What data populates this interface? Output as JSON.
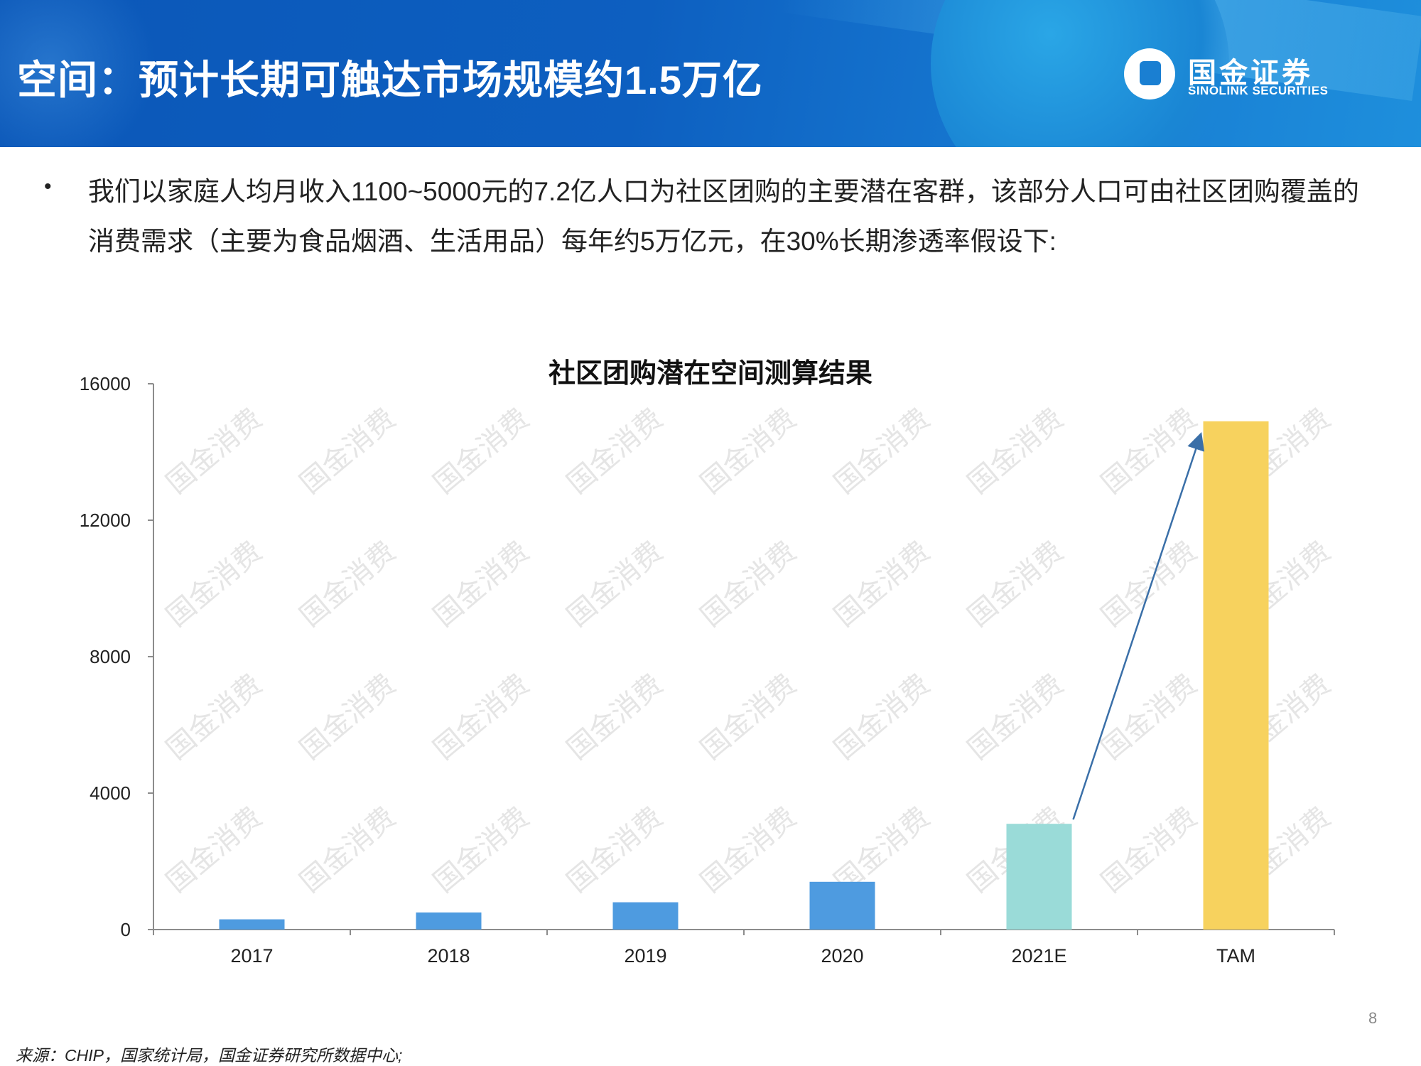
{
  "header": {
    "title": "空间：预计长期可触达市场规模约1.5万亿",
    "logo_cn": "国金证券",
    "logo_en": "SINOLINK SECURITIES"
  },
  "body": {
    "bullet": "•",
    "paragraph": "我们以家庭人均月收入1100~5000元的7.2亿人口为社区团购的主要潜在客群，该部分人口可由社区团购覆盖的消费需求（主要为食品烟酒、生活用品）每年约5万亿元，在30%长期渗透率假设下:"
  },
  "watermark": "国金消费",
  "chart_data": {
    "type": "bar",
    "title": "社区团购潜在空间测算结果",
    "categories": [
      "2017",
      "2018",
      "2019",
      "2020",
      "2021E",
      "TAM"
    ],
    "values": [
      300,
      500,
      800,
      1400,
      3100,
      14900
    ],
    "colors": [
      "#4e9be0",
      "#4e9be0",
      "#4e9be0",
      "#4e9be0",
      "#9adbd8",
      "#f7d25e"
    ],
    "ylim": [
      0,
      16000
    ],
    "yticks": [
      0,
      4000,
      8000,
      12000,
      16000
    ],
    "ytick_labels": [
      "0",
      "4000",
      "8000",
      "12000",
      "16000"
    ],
    "annotation": "arrow from 2021E bar to TAM bar",
    "arrow_color": "#3a6fa8"
  },
  "footer": {
    "page_number": "8",
    "source": "来源：CHIP，国家统计局，国金证券研究所数据中心;"
  }
}
